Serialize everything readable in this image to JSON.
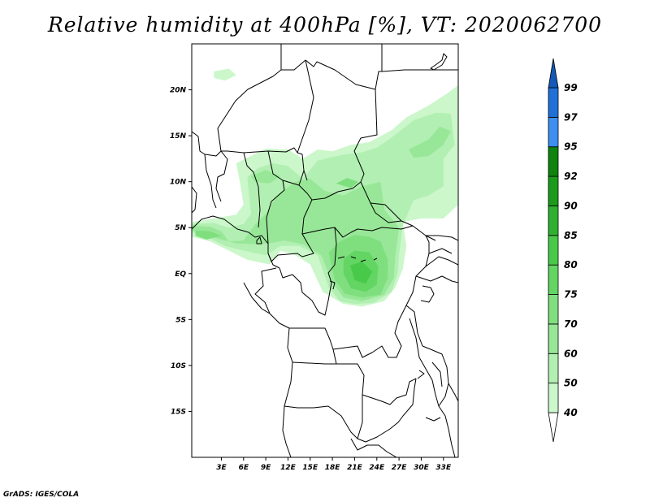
{
  "title": "Relative humidity at 400hPa [%], VT: 2020062700",
  "credit": "GrADS: IGES/COLA",
  "map": {
    "lon_range": [
      -1,
      35
    ],
    "lat_range": [
      -20,
      25
    ],
    "x_ticks": [
      {
        "value": 3,
        "label": "3E"
      },
      {
        "value": 6,
        "label": "6E"
      },
      {
        "value": 9,
        "label": "9E"
      },
      {
        "value": 12,
        "label": "12E"
      },
      {
        "value": 15,
        "label": "15E"
      },
      {
        "value": 18,
        "label": "18E"
      },
      {
        "value": 21,
        "label": "21E"
      },
      {
        "value": 24,
        "label": "24E"
      },
      {
        "value": 27,
        "label": "27E"
      },
      {
        "value": 30,
        "label": "30E"
      },
      {
        "value": 33,
        "label": "33E"
      }
    ],
    "y_ticks": [
      {
        "value": 20,
        "label": "20N"
      },
      {
        "value": 15,
        "label": "15N"
      },
      {
        "value": 10,
        "label": "10N"
      },
      {
        "value": 5,
        "label": "5N"
      },
      {
        "value": 0,
        "label": "EQ"
      },
      {
        "value": -5,
        "label": "5S"
      },
      {
        "value": -10,
        "label": "10S"
      },
      {
        "value": -15,
        "label": "15S"
      }
    ],
    "humidity_regions": [
      {
        "level": 40,
        "points": [
          [
            -1,
            5.6
          ],
          [
            2,
            6
          ],
          [
            5,
            6.4
          ],
          [
            6,
            7.5
          ],
          [
            5.5,
            10
          ],
          [
            5,
            12
          ],
          [
            9,
            13.6
          ],
          [
            12,
            13.5
          ],
          [
            14,
            12.5
          ],
          [
            16,
            13.5
          ],
          [
            18,
            13.3
          ],
          [
            20.5,
            14
          ],
          [
            23,
            14.3
          ],
          [
            26,
            15.6
          ],
          [
            28,
            17
          ],
          [
            31,
            18.3
          ],
          [
            33.5,
            19.6
          ],
          [
            35,
            20.5
          ],
          [
            35,
            7.5
          ],
          [
            33,
            6
          ],
          [
            30,
            6
          ],
          [
            27.5,
            5.6
          ],
          [
            28,
            3
          ],
          [
            27.5,
            0.5
          ],
          [
            26.5,
            -1.5
          ],
          [
            25,
            -3
          ],
          [
            22,
            -3.6
          ],
          [
            19.5,
            -3.3
          ],
          [
            16.7,
            -2
          ],
          [
            15,
            1
          ],
          [
            13,
            2
          ],
          [
            11,
            2.5
          ],
          [
            9.5,
            1
          ],
          [
            6.5,
            1.5
          ],
          [
            4,
            2.5
          ],
          [
            1.5,
            3.5
          ],
          [
            -1,
            4
          ]
        ]
      },
      {
        "level": 40,
        "points": [
          [
            2,
            22
          ],
          [
            4,
            22.3
          ],
          [
            5,
            21.6
          ],
          [
            3.5,
            21
          ],
          [
            2,
            21.3
          ]
        ]
      },
      {
        "level": 50,
        "points": [
          [
            -1,
            5.4
          ],
          [
            2,
            5.5
          ],
          [
            4,
            5
          ],
          [
            6,
            5.4
          ],
          [
            7,
            6.5
          ],
          [
            6.5,
            10.5
          ],
          [
            8,
            11.5
          ],
          [
            10,
            12
          ],
          [
            12,
            11.7
          ],
          [
            14,
            10.3
          ],
          [
            16,
            12.3
          ],
          [
            18,
            12.7
          ],
          [
            20,
            13
          ],
          [
            22,
            13.2
          ],
          [
            24,
            13.7
          ],
          [
            26,
            14.8
          ],
          [
            29,
            16.7
          ],
          [
            32,
            17.5
          ],
          [
            34,
            17.4
          ],
          [
            34.5,
            14
          ],
          [
            33,
            12.5
          ],
          [
            33,
            9.5
          ],
          [
            31,
            8.5
          ],
          [
            29,
            8
          ],
          [
            27.5,
            5.3
          ],
          [
            27,
            2
          ],
          [
            26.8,
            0
          ],
          [
            26,
            -2
          ],
          [
            23.5,
            -3.2
          ],
          [
            21,
            -3.3
          ],
          [
            19,
            -3
          ],
          [
            17.5,
            -1.5
          ],
          [
            16,
            2
          ],
          [
            13.5,
            3
          ],
          [
            11,
            3
          ],
          [
            9,
            2
          ],
          [
            6,
            2.5
          ],
          [
            3.5,
            3
          ],
          [
            1,
            4
          ],
          [
            -1,
            4.5
          ]
        ]
      },
      {
        "level": 60,
        "points": [
          [
            -1,
            5.2
          ],
          [
            1.5,
            5.1
          ],
          [
            3,
            4.6
          ],
          [
            4,
            3.5
          ],
          [
            6,
            3.6
          ],
          [
            7.5,
            5.3
          ],
          [
            9,
            6.5
          ],
          [
            10.5,
            8.5
          ],
          [
            13,
            10
          ],
          [
            15,
            10.3
          ],
          [
            17,
            9
          ],
          [
            19.5,
            8.5
          ],
          [
            22,
            9.5
          ],
          [
            24.5,
            10
          ],
          [
            25,
            7
          ],
          [
            27,
            5
          ],
          [
            26.5,
            2
          ],
          [
            26.3,
            -0.5
          ],
          [
            25,
            -2.3
          ],
          [
            22,
            -3
          ],
          [
            19.5,
            -2.6
          ],
          [
            18,
            -1
          ],
          [
            16.5,
            2
          ],
          [
            14,
            3.2
          ],
          [
            11.5,
            3.6
          ],
          [
            9.5,
            3.3
          ],
          [
            7.5,
            3.2
          ],
          [
            5,
            3.3
          ],
          [
            2.5,
            3.8
          ],
          [
            0.5,
            4.4
          ],
          [
            -1,
            4.7
          ]
        ]
      },
      {
        "level": 60,
        "points": [
          [
            7,
            10.6
          ],
          [
            9,
            11.3
          ],
          [
            11,
            10.6
          ],
          [
            9.5,
            9.8
          ],
          [
            7.5,
            10
          ]
        ]
      },
      {
        "level": 60,
        "points": [
          [
            28.3,
            13.5
          ],
          [
            31,
            14.6
          ],
          [
            32.5,
            16
          ],
          [
            34,
            15.5
          ],
          [
            33,
            14
          ],
          [
            31,
            12.8
          ],
          [
            29,
            12.6
          ]
        ]
      },
      {
        "level": 70,
        "points": [
          [
            17.5,
            2.3
          ],
          [
            19,
            3.5
          ],
          [
            21,
            4.2
          ],
          [
            23,
            4
          ],
          [
            24.5,
            3.5
          ],
          [
            25.5,
            1.5
          ],
          [
            25.5,
            -0.5
          ],
          [
            24.5,
            -2.3
          ],
          [
            22,
            -2.6
          ],
          [
            19.7,
            -2.2
          ],
          [
            18.3,
            -0.6
          ]
        ]
      },
      {
        "level": 70,
        "points": [
          [
            -0.5,
            4.7
          ],
          [
            1.5,
            4.6
          ],
          [
            3,
            4.1
          ],
          [
            1,
            3.7
          ],
          [
            -0.5,
            4.1
          ]
        ]
      },
      {
        "level": 70,
        "points": [
          [
            18.5,
            9.8
          ],
          [
            20,
            10.4
          ],
          [
            21.5,
            10
          ],
          [
            20.5,
            9.3
          ]
        ]
      },
      {
        "level": 75,
        "points": [
          [
            19.5,
            1.6
          ],
          [
            21,
            2.5
          ],
          [
            23,
            2.3
          ],
          [
            24.2,
            0.8
          ],
          [
            24,
            -1.2
          ],
          [
            22.5,
            -2
          ],
          [
            20.5,
            -1.6
          ],
          [
            19.5,
            0
          ]
        ]
      },
      {
        "level": 80,
        "points": [
          [
            20.4,
            0.9
          ],
          [
            22,
            1.3
          ],
          [
            23.4,
            0.2
          ],
          [
            22.5,
            -1.1
          ],
          [
            21,
            -0.7
          ]
        ]
      }
    ]
  },
  "colorbar": {
    "levels": [
      40,
      50,
      60,
      70,
      75,
      80,
      85,
      90,
      92,
      95,
      97,
      99
    ],
    "labels": [
      "40",
      "50",
      "60",
      "70",
      "75",
      "80",
      "85",
      "90",
      "92",
      "95",
      "97",
      "99"
    ],
    "colors": [
      "#e6ffe6",
      "#cbf7cb",
      "#b2efb2",
      "#98e798",
      "#7fdf7f",
      "#63d563",
      "#49c949",
      "#30b030",
      "#1b9a1b",
      "#0e830e",
      "#3d8ff0",
      "#2070d8",
      "#1458b8"
    ],
    "below_color": "#ffffff",
    "above_color": "#1458b8"
  }
}
